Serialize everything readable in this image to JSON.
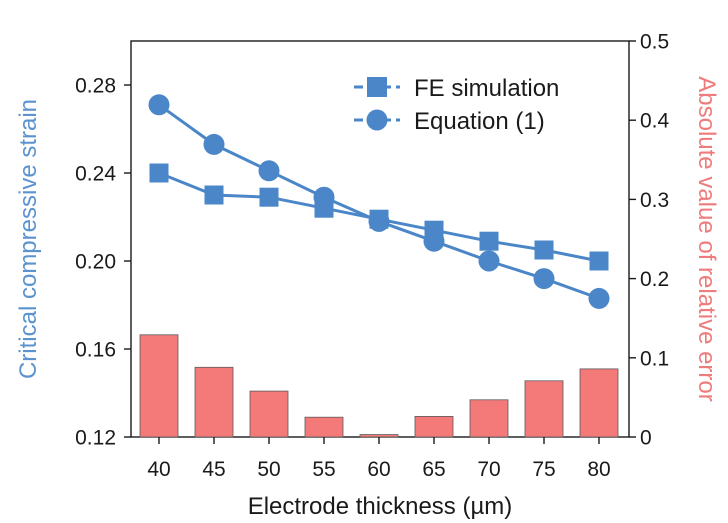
{
  "chart_data": {
    "type": "bar+line",
    "xlabel": "Electrode thickness (µm)",
    "ylabel_left": "Critical compressive strain",
    "ylabel_right": "Absolute value of relative error",
    "x": [
      40,
      45,
      50,
      55,
      60,
      65,
      70,
      75,
      80
    ],
    "x_tick_labels": [
      "40",
      "45",
      "50",
      "55",
      "60",
      "65",
      "70",
      "75",
      "80"
    ],
    "ylim_left": [
      0.12,
      0.3
    ],
    "yticks_left": [
      "0.12",
      "0.16",
      "0.20",
      "0.24",
      "0.28"
    ],
    "ylim_right": [
      0,
      0.5
    ],
    "yticks_right": [
      "0",
      "0.1",
      "0.2",
      "0.3",
      "0.4",
      "0.5"
    ],
    "series": [
      {
        "name": "FE simulation",
        "axis": "left",
        "marker": "square",
        "color": "#4a86c8",
        "values": [
          0.24,
          0.23,
          0.229,
          0.224,
          0.219,
          0.214,
          0.209,
          0.205,
          0.2
        ]
      },
      {
        "name": "Equation (1)",
        "axis": "left",
        "marker": "circle",
        "color": "#4a86c8",
        "values": [
          0.271,
          0.253,
          0.241,
          0.229,
          0.218,
          0.209,
          0.2,
          0.192,
          0.183
        ]
      },
      {
        "name": "Absolute value of relative error",
        "axis": "right",
        "type": "bar",
        "color": "#f47a7a",
        "values": [
          0.129,
          0.088,
          0.058,
          0.025,
          0.003,
          0.026,
          0.047,
          0.071,
          0.086
        ]
      }
    ],
    "legend_position": "top-right",
    "left_axis_color": "#5b93cf",
    "right_axis_color": "#ee7c7c"
  }
}
